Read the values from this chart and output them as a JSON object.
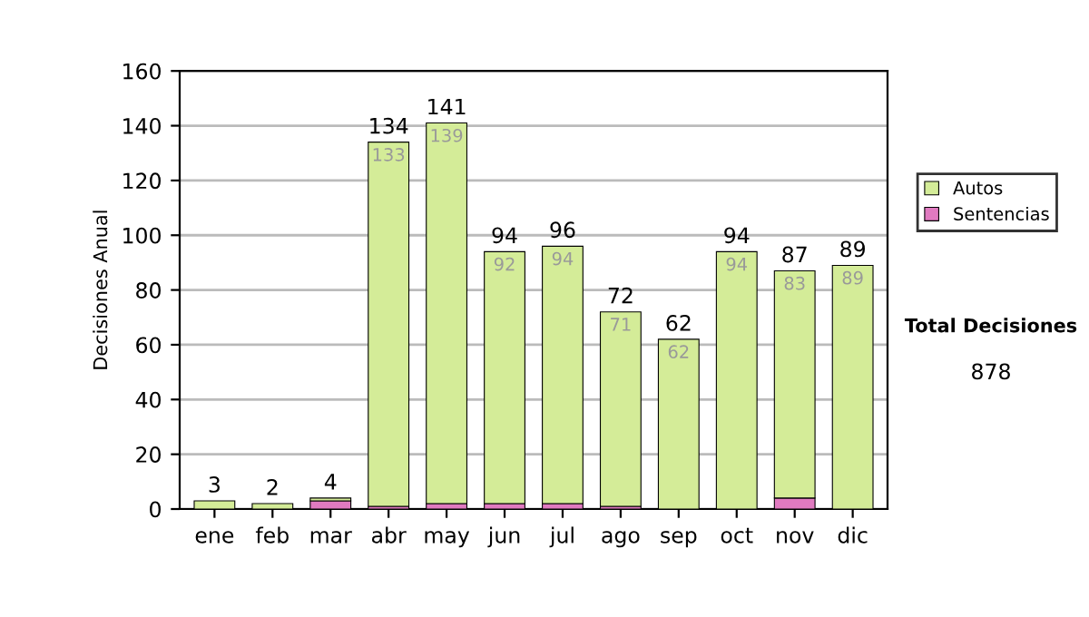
{
  "chart_data": {
    "type": "bar",
    "stacked": true,
    "ylabel": "Decisiones Anual",
    "categories": [
      "ene",
      "feb",
      "mar",
      "abr",
      "may",
      "jun",
      "jul",
      "ago",
      "sep",
      "oct",
      "nov",
      "dic"
    ],
    "series": [
      {
        "name": "Sentencias",
        "color": "#e07ac0",
        "values": [
          0,
          0,
          3,
          1,
          2,
          2,
          2,
          1,
          0,
          0,
          4,
          0
        ]
      },
      {
        "name": "Autos",
        "color": "#d4ec98",
        "values": [
          3,
          2,
          1,
          133,
          139,
          92,
          94,
          71,
          62,
          94,
          83,
          89
        ],
        "value_labels": [
          null,
          null,
          null,
          "133",
          "139",
          "92",
          "94",
          "71",
          "62",
          "94",
          "83",
          "89"
        ]
      }
    ],
    "totals": [
      "3",
      "2",
      "4",
      "134",
      "141",
      "94",
      "96",
      "72",
      "62",
      "94",
      "87",
      "89"
    ],
    "ylim": [
      0,
      160
    ],
    "yticks": [
      0,
      20,
      40,
      60,
      80,
      100,
      120,
      140,
      160
    ],
    "grid": "y",
    "legend": "right",
    "annotations": [
      "Total Decisiones",
      "878"
    ]
  }
}
